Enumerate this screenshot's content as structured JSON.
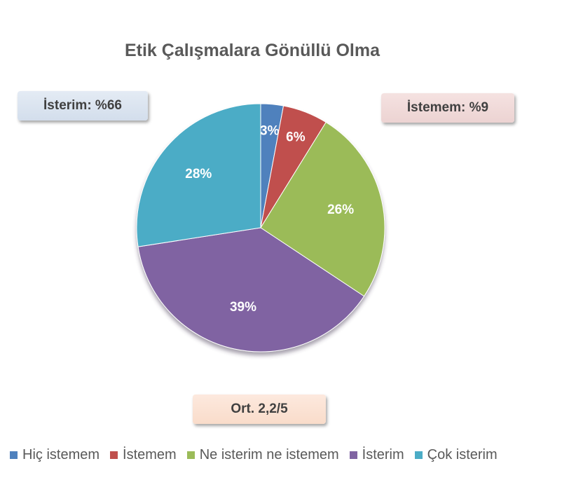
{
  "chart_data": {
    "type": "pie",
    "title": "Etik Çalışmalara Gönüllü Olma",
    "slices": [
      {
        "name": "Hiç istemem",
        "value": 3,
        "label": "3%",
        "color": "#4f81bd"
      },
      {
        "name": "İstemem",
        "value": 6,
        "label": "6%",
        "color": "#c0504d"
      },
      {
        "name": "Ne isterim ne istemem",
        "value": 26,
        "label": "26%",
        "color": "#9bbb59"
      },
      {
        "name": "İsterim",
        "value": 39,
        "label": "39%",
        "color": "#8064a2"
      },
      {
        "name": "Çok isterim",
        "value": 28,
        "label": "28%",
        "color": "#4bacc6"
      }
    ],
    "legend_position": "bottom",
    "annotations": {
      "want": "İsterim:  %66",
      "not_want": "İstemem:  %9",
      "average": "Ort. 2,2/5"
    }
  }
}
